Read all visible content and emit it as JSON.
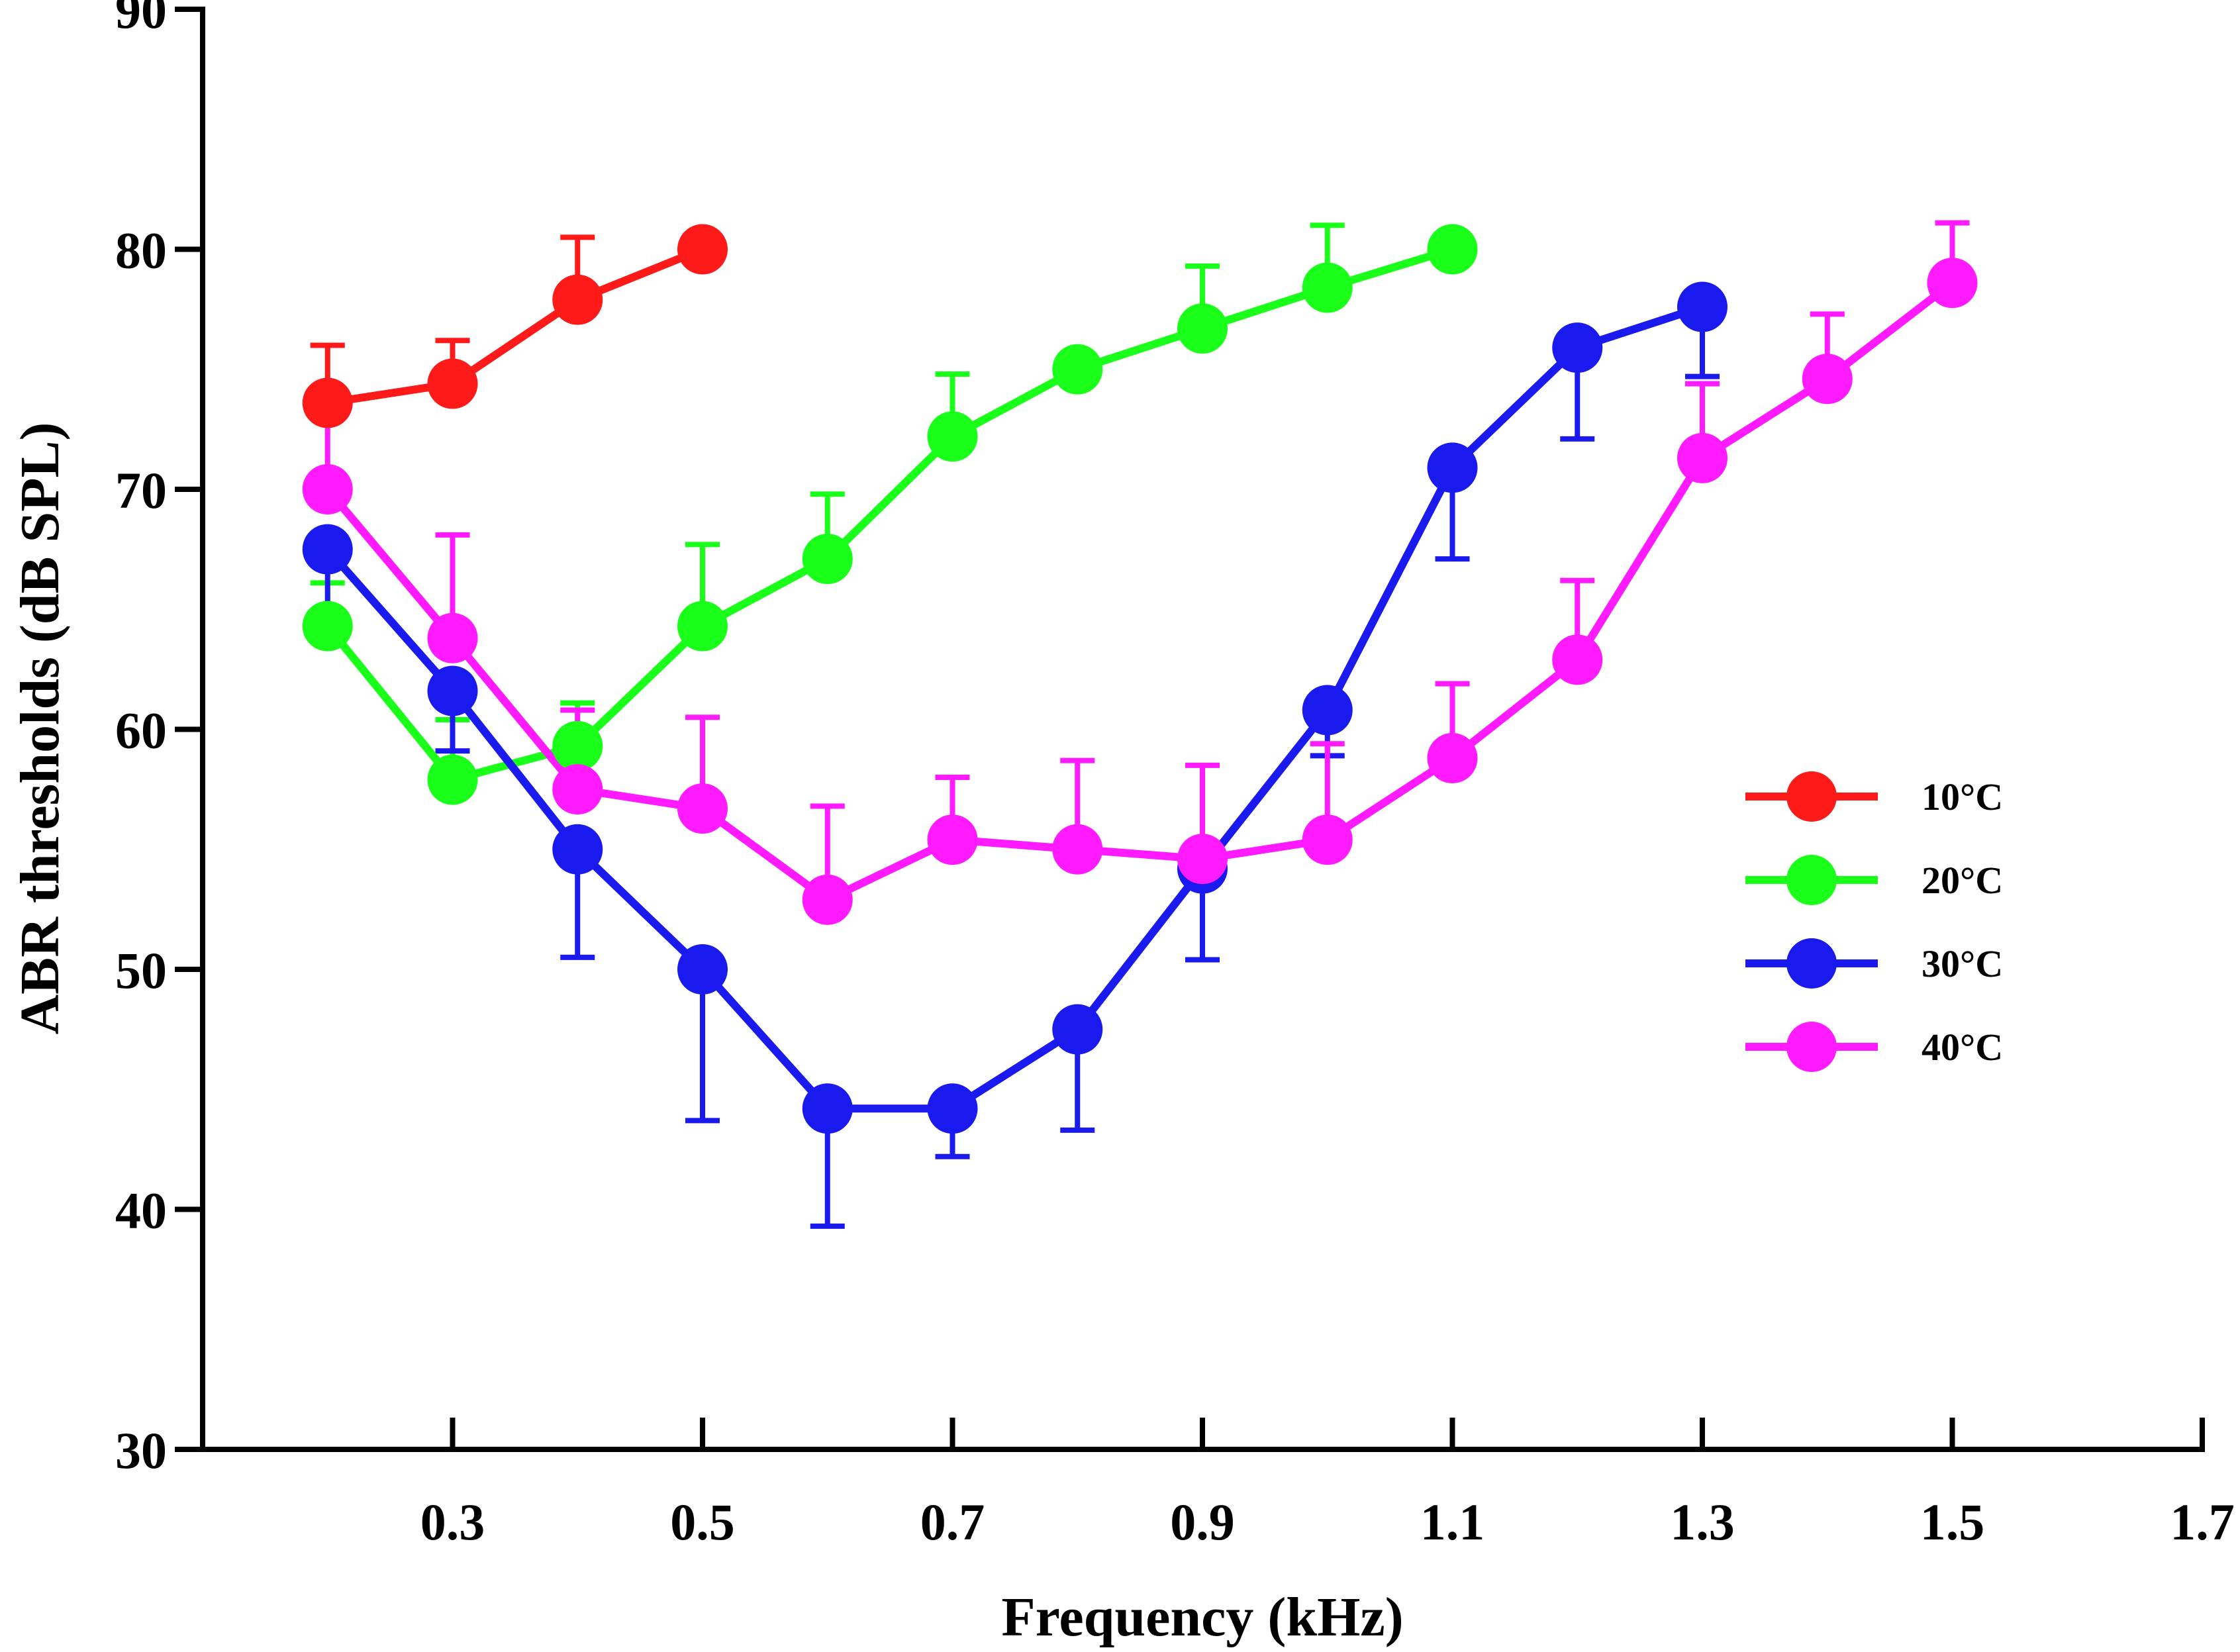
{
  "chart_data": {
    "type": "line",
    "title": "",
    "xlabel": "Frequency (kHz)",
    "ylabel": "ABR thresholds (dB SPL)",
    "xlim": [
      0.1,
      1.7
    ],
    "ylim": [
      30,
      90
    ],
    "x_ticks": [
      0.3,
      0.5,
      0.7,
      0.9,
      1.1,
      1.3,
      1.5,
      1.7
    ],
    "x_tick_labels": [
      "0.3",
      "0.5",
      "0.7",
      "0.9",
      "1.1",
      "1.3",
      "1.5",
      "1.7"
    ],
    "y_ticks": [
      30,
      40,
      50,
      60,
      70,
      80,
      90
    ],
    "y_tick_labels": [
      "30",
      "40",
      "50",
      "60",
      "70",
      "80",
      "90"
    ],
    "grid": false,
    "legend_position": "right",
    "series": [
      {
        "name": "10°C",
        "color": "#ff1a1a",
        "x": [
          0.2,
          0.3,
          0.4,
          0.5
        ],
        "y": [
          73.6,
          74.4,
          77.9,
          80.0
        ],
        "err_plus": [
          2.4,
          1.8,
          2.6,
          null
        ],
        "err_minus": [
          null,
          null,
          null,
          null
        ]
      },
      {
        "name": "20°C",
        "color": "#1aff1a",
        "x": [
          0.2,
          0.3,
          0.4,
          0.5,
          0.6,
          0.7,
          0.8,
          0.9,
          1.0,
          1.1
        ],
        "y": [
          64.3,
          57.9,
          59.3,
          64.3,
          67.1,
          72.2,
          75.0,
          76.7,
          78.4,
          80.0
        ],
        "err_plus": [
          1.8,
          2.5,
          1.8,
          3.4,
          2.7,
          2.6,
          null,
          2.6,
          2.6,
          null
        ],
        "err_minus": [
          null,
          null,
          null,
          null,
          null,
          null,
          null,
          null,
          null,
          null
        ]
      },
      {
        "name": "30°C",
        "color": "#1a1aee",
        "x": [
          0.2,
          0.3,
          0.4,
          0.5,
          0.6,
          0.7,
          0.8,
          0.9,
          1.0,
          1.1,
          1.2,
          1.3
        ],
        "y": [
          67.5,
          61.6,
          55.0,
          50.0,
          44.2,
          44.2,
          47.5,
          54.2,
          60.8,
          70.9,
          75.9,
          77.6
        ],
        "err_plus": [
          null,
          null,
          null,
          null,
          null,
          null,
          null,
          null,
          null,
          null,
          null,
          null
        ],
        "err_minus": [
          2.6,
          2.5,
          4.5,
          6.3,
          4.9,
          2.0,
          4.2,
          3.8,
          1.9,
          3.8,
          3.8,
          2.9
        ]
      },
      {
        "name": "40°C",
        "color": "#ff1aff",
        "x": [
          0.2,
          0.3,
          0.4,
          0.5,
          0.6,
          0.7,
          0.8,
          0.9,
          1.0,
          1.1,
          1.2,
          1.3,
          1.4,
          1.5
        ],
        "y": [
          70.0,
          63.8,
          57.5,
          56.7,
          52.9,
          55.4,
          55.0,
          54.6,
          55.4,
          58.8,
          62.9,
          71.3,
          74.6,
          78.6
        ],
        "err_plus": [
          3.5,
          4.3,
          3.3,
          3.8,
          3.9,
          2.6,
          3.7,
          3.9,
          4.0,
          3.1,
          3.3,
          3.1,
          2.7,
          2.5
        ],
        "err_minus": [
          null,
          null,
          null,
          null,
          null,
          null,
          null,
          null,
          null,
          null,
          null,
          null,
          null,
          null
        ]
      }
    ]
  }
}
